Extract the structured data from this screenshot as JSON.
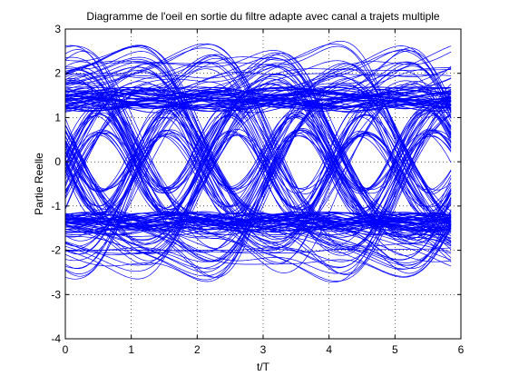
{
  "chart_data": {
    "type": "line",
    "title": "Diagramme de l'oeil en sortie du filtre adapte avec canal a trajets multiple",
    "xlabel": "t/T",
    "ylabel": "Partie Reelle",
    "xlim": [
      0,
      6
    ],
    "ylim": [
      -4,
      3
    ],
    "xticks": [
      0,
      1,
      2,
      3,
      4,
      5,
      6
    ],
    "yticks": [
      3,
      2,
      1,
      0,
      -1,
      -2,
      -3,
      -4
    ],
    "grid": true,
    "grid_style": "dotted",
    "trace_span": [
      0,
      5.85
    ],
    "symbol_period": 1,
    "eye_center_phase": 0.5,
    "signal_levels": [
      1.4,
      -1.4
    ],
    "band_half_width": 0.2,
    "excursion_range": [
      -3.05,
      2.95
    ],
    "series_color": "#0000ff",
    "legend": null
  }
}
